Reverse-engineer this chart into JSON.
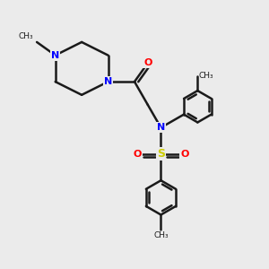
{
  "bg_color": "#ebebeb",
  "bond_color": "#1a1a1a",
  "N_color": "#0000ff",
  "O_color": "#ff0000",
  "S_color": "#cccc00",
  "bond_width": 1.8,
  "figsize": [
    3.0,
    3.0
  ],
  "dpi": 100,
  "xlim": [
    -4.5,
    5.5
  ],
  "ylim": [
    -5.5,
    4.5
  ]
}
